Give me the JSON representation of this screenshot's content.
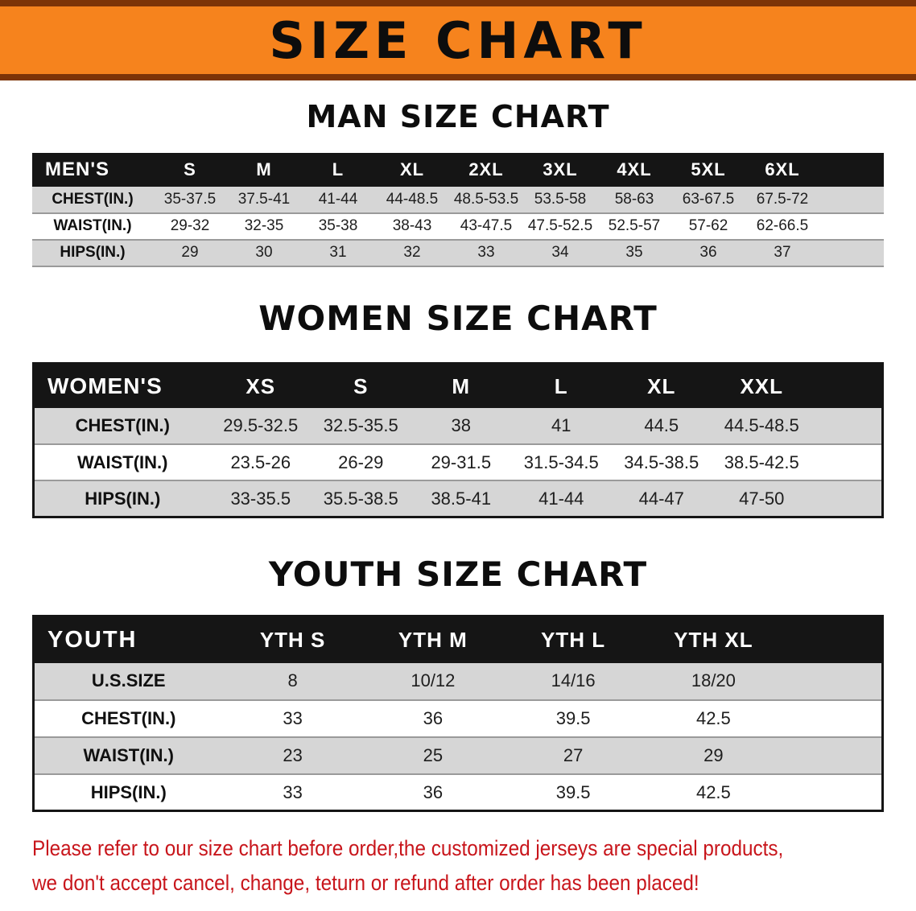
{
  "banner": {
    "title": "SIZE CHART",
    "background_color": "#f6831d",
    "border_color": "#7d3407"
  },
  "sections": [
    {
      "heading": "MAN SIZE CHART",
      "table": {
        "header": [
          "MEN'S",
          "S",
          "M",
          "L",
          "XL",
          "2XL",
          "3XL",
          "4XL",
          "5XL",
          "6XL"
        ],
        "rows": [
          [
            "CHEST(IN.)",
            "35-37.5",
            "37.5-41",
            "41-44",
            "44-48.5",
            "48.5-53.5",
            "53.5-58",
            "58-63",
            "63-67.5",
            "67.5-72"
          ],
          [
            "WAIST(IN.)",
            "29-32",
            "32-35",
            "35-38",
            "38-43",
            "43-47.5",
            "47.5-52.5",
            "52.5-57",
            "57-62",
            "62-66.5"
          ],
          [
            "HIPS(IN.)",
            "29",
            "30",
            "31",
            "32",
            "33",
            "34",
            "35",
            "36",
            "37"
          ]
        ]
      }
    },
    {
      "heading": "WOMEN SIZE CHART",
      "table": {
        "header": [
          "WOMEN'S",
          "XS",
          "S",
          "M",
          "L",
          "XL",
          "XXL"
        ],
        "rows": [
          [
            "CHEST(IN.)",
            "29.5-32.5",
            "32.5-35.5",
            "38",
            "41",
            "44.5",
            "44.5-48.5"
          ],
          [
            "WAIST(IN.)",
            "23.5-26",
            "26-29",
            "29-31.5",
            "31.5-34.5",
            "34.5-38.5",
            "38.5-42.5"
          ],
          [
            "HIPS(IN.)",
            "33-35.5",
            "35.5-38.5",
            "38.5-41",
            "41-44",
            "44-47",
            "47-50"
          ]
        ]
      }
    },
    {
      "heading": "YOUTH SIZE CHART",
      "table": {
        "header": [
          "YOUTH",
          "YTH S",
          "YTH M",
          "YTH L",
          "YTH XL"
        ],
        "rows": [
          [
            "U.S.SIZE",
            "8",
            "10/12",
            "14/16",
            "18/20"
          ],
          [
            "CHEST(IN.)",
            "33",
            "36",
            "39.5",
            "42.5"
          ],
          [
            "WAIST(IN.)",
            "23",
            "25",
            "27",
            "29"
          ],
          [
            "HIPS(IN.)",
            "33",
            "36",
            "39.5",
            "42.5"
          ]
        ]
      }
    }
  ],
  "footer": {
    "line1": "Please refer to our size chart before order,the customized jerseys are special products,",
    "line2": "we don't accept cancel, change, teturn or refund after order has been placed!",
    "text_color": "#c8151b"
  },
  "colors": {
    "header_row_bg": "#151515",
    "header_row_text": "#ffffff",
    "alt_row_bg": "#d6d6d6"
  }
}
